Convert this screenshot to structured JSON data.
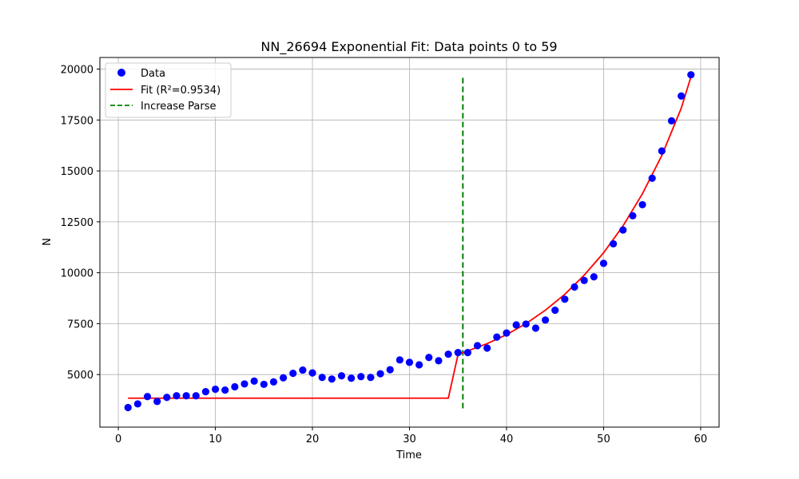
{
  "chart_data": {
    "type": "scatter",
    "title": "NN_26694 Exponential Fit: Data points 0 to 59",
    "xlabel": "Time",
    "ylabel": "N",
    "xlim": [
      -1.9,
      61.9
    ],
    "ylim": [
      2420,
      20570
    ],
    "xticks": [
      0,
      10,
      20,
      30,
      40,
      50,
      60
    ],
    "yticks": [
      5000,
      7500,
      10000,
      12500,
      15000,
      17500,
      20000
    ],
    "grid": true,
    "legend_position": "top-left",
    "series": [
      {
        "name": "Data",
        "kind": "scatter",
        "color": "#0000ff",
        "x": [
          1,
          2,
          3,
          4,
          5,
          6,
          7,
          8,
          9,
          10,
          11,
          12,
          13,
          14,
          15,
          16,
          17,
          18,
          19,
          20,
          21,
          22,
          23,
          24,
          25,
          26,
          27,
          28,
          29,
          30,
          31,
          32,
          33,
          34,
          35,
          36,
          37,
          38,
          39,
          40,
          41,
          42,
          43,
          44,
          45,
          46,
          47,
          48,
          49,
          50,
          51,
          52,
          53,
          54,
          55,
          56,
          57,
          58,
          59
        ],
        "y": [
          3380,
          3560,
          3920,
          3680,
          3880,
          3960,
          3960,
          3960,
          4160,
          4280,
          4240,
          4400,
          4540,
          4680,
          4520,
          4640,
          4840,
          5060,
          5220,
          5080,
          4860,
          4780,
          4940,
          4820,
          4900,
          4860,
          5040,
          5240,
          5720,
          5600,
          5480,
          5840,
          5680,
          6000,
          6080,
          6080,
          6420,
          6300,
          6840,
          7040,
          7440,
          7480,
          7280,
          7680,
          8160,
          8700,
          9300,
          9620,
          9800,
          10460,
          11420,
          12100,
          12800,
          13340,
          14640,
          15980,
          17460,
          18680,
          19720
        ]
      },
      {
        "name": "Fit (R²=0.9534)",
        "kind": "line",
        "color": "#ff0000",
        "x": [
          1,
          34,
          35,
          36,
          38,
          40,
          42,
          44,
          46,
          48,
          50,
          52,
          54,
          56,
          58,
          59
        ],
        "y": [
          3840,
          3840,
          5980,
          6160,
          6520,
          6960,
          7500,
          8160,
          8940,
          9880,
          10980,
          12300,
          13880,
          15760,
          18080,
          19620
        ]
      },
      {
        "name": "Increase Parse",
        "kind": "vline",
        "color": "#008000",
        "x": 35.5,
        "y": [
          3340,
          19700
        ]
      }
    ]
  }
}
